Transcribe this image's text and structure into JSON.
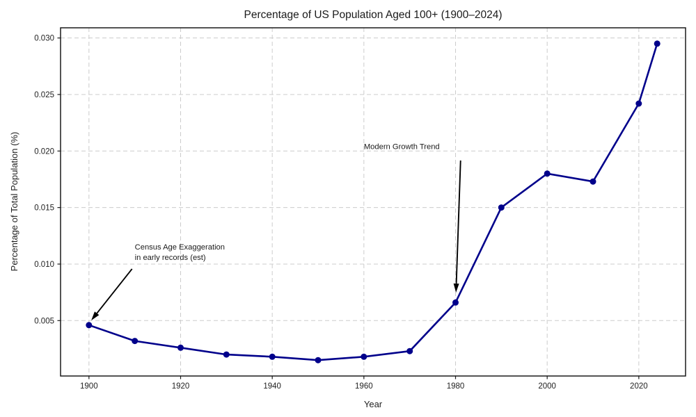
{
  "chart_data": {
    "type": "line",
    "title": "Percentage of US Population Aged 100+ (1900–2024)",
    "xlabel": "Year",
    "ylabel": "Percentage of Total Population (%)",
    "x": [
      1900,
      1910,
      1920,
      1930,
      1940,
      1950,
      1960,
      1970,
      1980,
      1990,
      2000,
      2010,
      2020,
      2024
    ],
    "y": [
      0.0046,
      0.0032,
      0.0026,
      0.002,
      0.0018,
      0.0015,
      0.0018,
      0.0023,
      0.0066,
      0.015,
      0.018,
      0.0173,
      0.0242,
      0.0295
    ],
    "xlim": [
      1893.8,
      2030.2
    ],
    "ylim": [
      0.0001,
      0.0309
    ],
    "xticks": [
      1900,
      1920,
      1940,
      1960,
      1980,
      2000,
      2020
    ],
    "xtick_labels": [
      "1900",
      "1920",
      "1940",
      "1960",
      "1980",
      "2000",
      "2020"
    ],
    "yticks": [
      0.005,
      0.01,
      0.015,
      0.02,
      0.025,
      0.03
    ],
    "ytick_labels": [
      "0.005",
      "0.010",
      "0.015",
      "0.020",
      "0.025",
      "0.030"
    ],
    "grid": true,
    "grid_style": "dashed",
    "legend": false,
    "line_color": "#00008B",
    "marker": "circle",
    "annotations": [
      {
        "lines": [
          "Census Age Exaggeration",
          "in early records (est)"
        ],
        "text_xy": [
          1910,
          0.0119
        ],
        "arrow_from": [
          1909.4,
          0.00957
        ],
        "arrow_to": [
          1900.5,
          0.00502
        ]
      },
      {
        "lines": [
          "Modern Growth Trend"
        ],
        "text_xy": [
          1960,
          0.0208
        ],
        "arrow_from": [
          1981.1,
          0.01916
        ],
        "arrow_to": [
          1980.1,
          0.00748
        ]
      }
    ]
  },
  "colors": {
    "background": "#ffffff",
    "line": "#00008B",
    "marker": "#00008B",
    "grid": "#cccccc",
    "spine": "#1a1a1a",
    "tick_text": "#1f1f1f",
    "annotation_text": "#1a1a1a",
    "annotation_arrow": "#000000",
    "title_text": "#1a1a1a"
  }
}
